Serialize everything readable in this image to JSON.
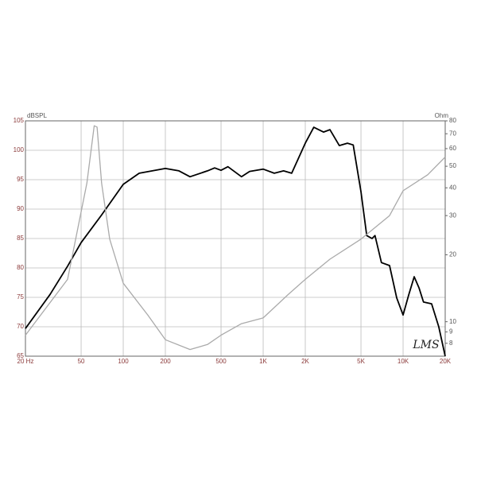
{
  "chart_data": {
    "type": "line",
    "y_label": "dBSPL",
    "y2_label": "Ohm",
    "annotation": "LMS",
    "xscale": "log",
    "y2scale": "log",
    "grid": true,
    "xlim": [
      20,
      20000
    ],
    "xticks": [
      {
        "value": 20,
        "label": "20 Hz"
      },
      50,
      100,
      200,
      500,
      {
        "value": 1000,
        "label": "1K"
      },
      {
        "value": 2000,
        "label": "2K"
      },
      {
        "value": 5000,
        "label": "5K"
      },
      {
        "value": 10000,
        "label": "10K"
      },
      {
        "value": 20000,
        "label": "20K"
      }
    ],
    "ylim": [
      65,
      105
    ],
    "yticks": [
      65,
      70,
      75,
      80,
      85,
      90,
      95,
      100,
      105
    ],
    "y2lim": [
      7,
      80
    ],
    "y2ticks": [
      8,
      9,
      10,
      20,
      30,
      40,
      50,
      60,
      70,
      80
    ],
    "series": [
      {
        "color": "#000000",
        "axis": "y",
        "x": [
          20,
          30,
          40,
          50,
          70,
          100,
          130,
          200,
          250,
          300,
          400,
          450,
          500,
          560,
          700,
          800,
          1000,
          1200,
          1400,
          1600,
          2000,
          2300,
          2700,
          3000,
          3500,
          4000,
          4400,
          5000,
          5500,
          6000,
          6300,
          7000,
          8000,
          9000,
          10000,
          11000,
          12000,
          13000,
          14000,
          16000,
          18000,
          20000
        ],
        "values": [
          69.7,
          75.5,
          80.3,
          84.3,
          89,
          94.2,
          96.1,
          96.9,
          96.5,
          95.5,
          96.5,
          97,
          96.6,
          97.2,
          95.5,
          96.4,
          96.8,
          96.1,
          96.5,
          96.1,
          101.2,
          103.9,
          103.1,
          103.5,
          100.8,
          101.2,
          100.9,
          93,
          85.5,
          85,
          85.5,
          80.9,
          80.4,
          74.9,
          72,
          75.5,
          78.5,
          76.6,
          74.2,
          73.9,
          70,
          65
        ]
      },
      {
        "color": "#aaaaaa",
        "axis": "y2",
        "x": [
          20,
          40,
          55,
          62,
          65,
          70,
          80,
          100,
          150,
          200,
          300,
          400,
          500,
          700,
          1000,
          1500,
          2000,
          3000,
          5000,
          8000,
          10000,
          15000,
          20000
        ],
        "values": [
          8.7,
          15.5,
          42,
          76,
          75,
          42,
          23.5,
          14.9,
          10.7,
          8.3,
          7.5,
          7.9,
          8.7,
          9.8,
          10.4,
          13.2,
          15.5,
          19.1,
          23.5,
          30,
          38.8,
          45.8,
          55
        ]
      }
    ]
  }
}
